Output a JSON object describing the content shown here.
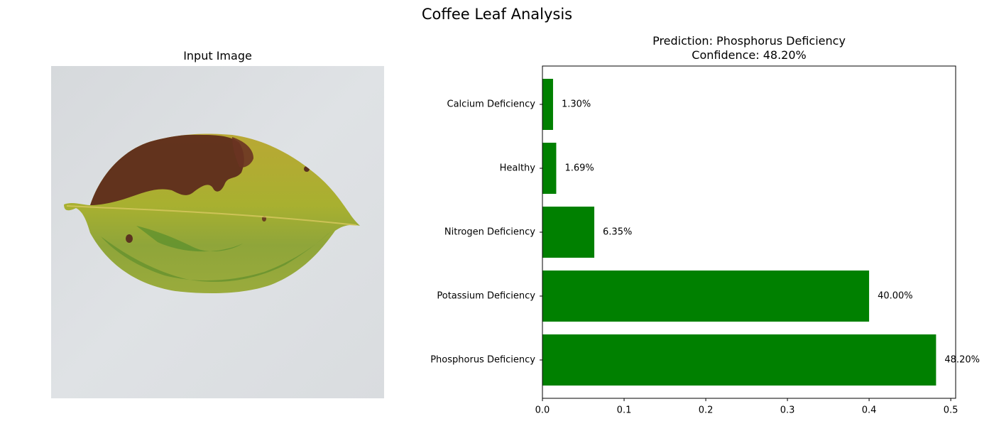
{
  "figure": {
    "suptitle": "Coffee Leaf Analysis"
  },
  "image_panel": {
    "title": "Input Image"
  },
  "chart_panel": {
    "title_line1": "Prediction: Phosphorus Deficiency",
    "title_line2": "Confidence: 48.20%"
  },
  "chart_data": {
    "type": "bar",
    "orientation": "horizontal",
    "categories": [
      "Phosphorus Deficiency",
      "Potassium Deficiency",
      "Nitrogen Deficiency",
      "Healthy",
      "Calcium Deficiency"
    ],
    "values": [
      0.482,
      0.4,
      0.0635,
      0.0169,
      0.013
    ],
    "data_labels": [
      "48.20%",
      "40.00%",
      "6.35%",
      "1.69%",
      "1.30%"
    ],
    "xlim": [
      0,
      0.506
    ],
    "xticks": [
      0.0,
      0.1,
      0.2,
      0.3,
      0.4,
      0.5
    ],
    "xtick_labels": [
      "0.0",
      "0.1",
      "0.2",
      "0.3",
      "0.4",
      "0.5"
    ],
    "bar_color": "#008000",
    "grid": false,
    "title": "Prediction: Phosphorus Deficiency\nConfidence: 48.20%"
  }
}
